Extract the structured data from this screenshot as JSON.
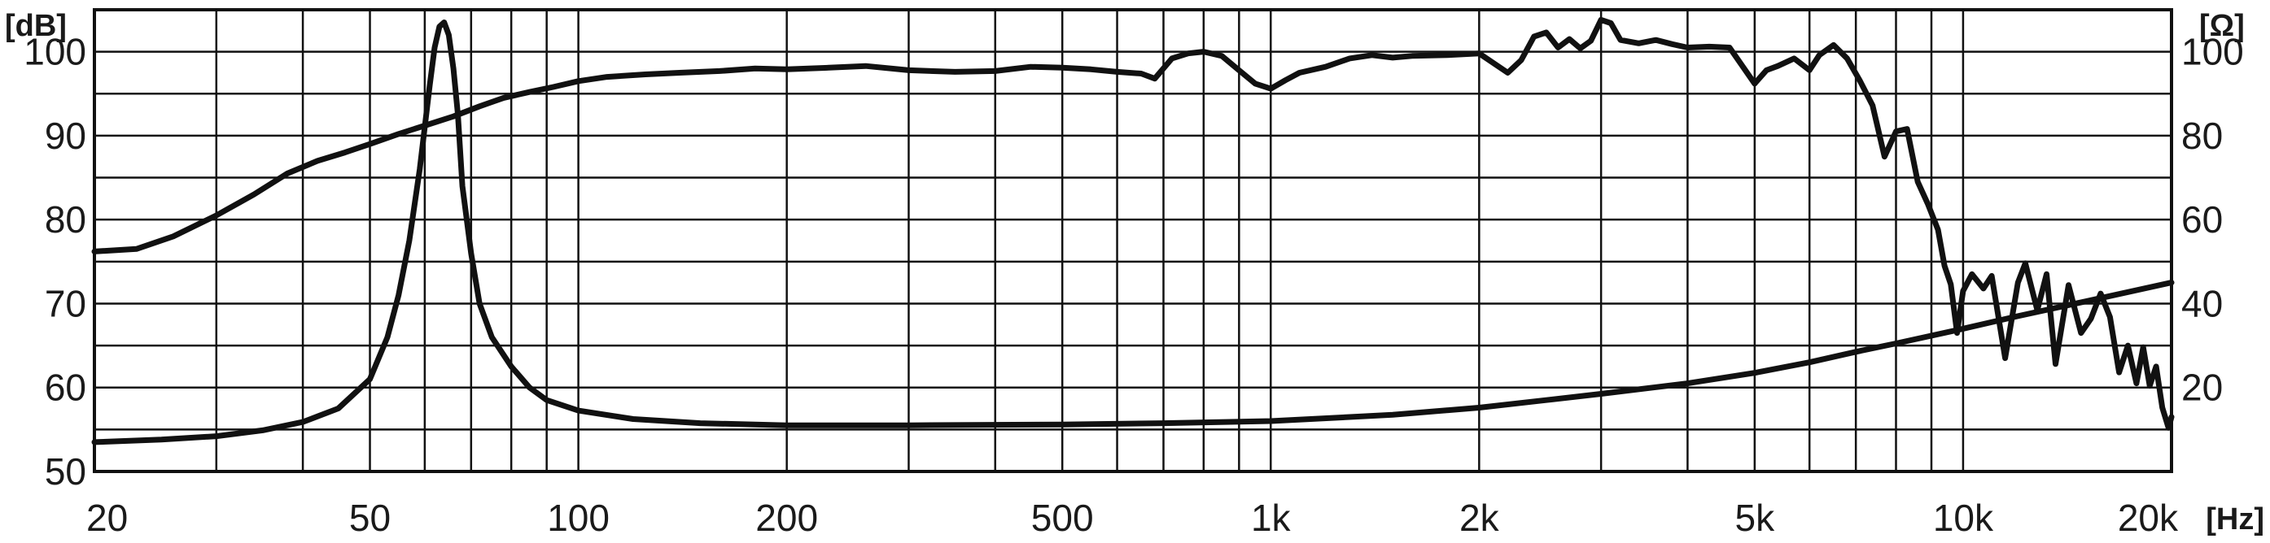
{
  "chart_data": {
    "type": "line",
    "title": "",
    "x_scale": "log",
    "xlim": [
      20,
      20000
    ],
    "xticks": [
      {
        "value": 20,
        "label": "20"
      },
      {
        "value": 50,
        "label": "50"
      },
      {
        "value": 100,
        "label": "100"
      },
      {
        "value": 200,
        "label": "200"
      },
      {
        "value": 500,
        "label": "500"
      },
      {
        "value": 1000,
        "label": "1k"
      },
      {
        "value": 2000,
        "label": "2k"
      },
      {
        "value": 5000,
        "label": "5k"
      },
      {
        "value": 10000,
        "label": "10k"
      },
      {
        "value": 20000,
        "label": "20k"
      }
    ],
    "x_unit_label": "[Hz]",
    "y_left": {
      "unit_label": "[dB]",
      "lim": [
        50,
        105
      ],
      "ticks": [
        50,
        60,
        70,
        80,
        90,
        100
      ]
    },
    "y_right": {
      "unit_label": "[Ω]",
      "lim": [
        0,
        110
      ],
      "ticks": [
        20,
        40,
        60,
        80,
        100
      ]
    },
    "grid": true,
    "series": [
      {
        "axis": "left",
        "x": [
          20,
          23,
          26,
          30,
          34,
          38,
          42,
          46,
          50,
          55,
          60,
          66,
          72,
          78,
          85,
          92,
          100,
          110,
          125,
          140,
          160,
          180,
          200,
          230,
          260,
          300,
          350,
          400,
          450,
          500,
          550,
          600,
          650,
          680,
          720,
          760,
          800,
          850,
          900,
          950,
          1000,
          1050,
          1100,
          1200,
          1300,
          1400,
          1500,
          1600,
          1800,
          2000,
          2200,
          2300,
          2400,
          2500,
          2600,
          2700,
          2800,
          2900,
          3000,
          3100,
          3200,
          3400,
          3600,
          3800,
          4000,
          4300,
          4600,
          5000,
          5200,
          5400,
          5700,
          6000,
          6200,
          6500,
          6800,
          7100,
          7400,
          7700,
          8000,
          8300,
          8600,
          8900,
          9200,
          9400,
          9600,
          9800,
          10000,
          10300,
          10700,
          11000,
          11500,
          12000,
          12300,
          12800,
          13200,
          13600,
          14200,
          14800,
          15300,
          15800,
          16300,
          16800,
          17300,
          17800,
          18200,
          18600,
          19000,
          19400,
          19800,
          20000
        ],
        "y": [
          76.2,
          76.5,
          78,
          80.5,
          83,
          85.5,
          87,
          88,
          89,
          90.2,
          91.2,
          92.3,
          93.5,
          94.5,
          95.2,
          95.8,
          96.5,
          97,
          97.3,
          97.5,
          97.7,
          98,
          97.9,
          98.1,
          98.3,
          97.8,
          97.6,
          97.7,
          98.2,
          98.1,
          97.9,
          97.6,
          97.4,
          96.8,
          99.2,
          99.8,
          100,
          99.5,
          97.8,
          96.2,
          95.6,
          96.6,
          97.5,
          98.2,
          99.2,
          99.6,
          99.3,
          99.5,
          99.6,
          99.8,
          97.5,
          99,
          101.8,
          102.3,
          100.5,
          101.5,
          100.4,
          101.3,
          103.8,
          103.4,
          101.4,
          101,
          101.4,
          100.9,
          100.5,
          100.6,
          100.5,
          96.2,
          97.8,
          98.3,
          99.2,
          97.8,
          99.6,
          100.8,
          99.2,
          96.5,
          93.6,
          87.5,
          90.5,
          90.8,
          84.5,
          81.8,
          78.8,
          74.5,
          72.3,
          66.5,
          71.5,
          73.5,
          71.8,
          73.3,
          63.5,
          72.5,
          74.8,
          69.2,
          73.5,
          62.8,
          72.2,
          66.5,
          68.2,
          71.2,
          68.4,
          61.8,
          65,
          60.5,
          64.8,
          60.2,
          62.5,
          57.6,
          55.2,
          56.5
        ]
      },
      {
        "axis": "right",
        "x": [
          20,
          25,
          30,
          35,
          40,
          45,
          50,
          53,
          55,
          57,
          59,
          61,
          62,
          63,
          64,
          65,
          66,
          67,
          68,
          70,
          72,
          75,
          80,
          85,
          90,
          100,
          120,
          150,
          200,
          300,
          500,
          700,
          1000,
          1500,
          2000,
          2500,
          3000,
          4000,
          5000,
          6000,
          7000,
          8000,
          10000,
          12000,
          15000,
          20000
        ],
        "y": [
          7,
          7.6,
          8.4,
          9.8,
          11.8,
          15,
          22,
          32,
          42,
          55,
          72,
          92,
          101,
          106,
          107,
          104,
          96,
          85,
          68,
          52,
          40,
          32,
          25,
          20,
          17,
          14.5,
          12.5,
          11.5,
          11,
          11,
          11.2,
          11.5,
          12,
          13.5,
          15.2,
          17,
          18.5,
          21,
          23.5,
          26,
          28.5,
          30.5,
          34,
          37,
          40.5,
          45
        ]
      }
    ]
  }
}
